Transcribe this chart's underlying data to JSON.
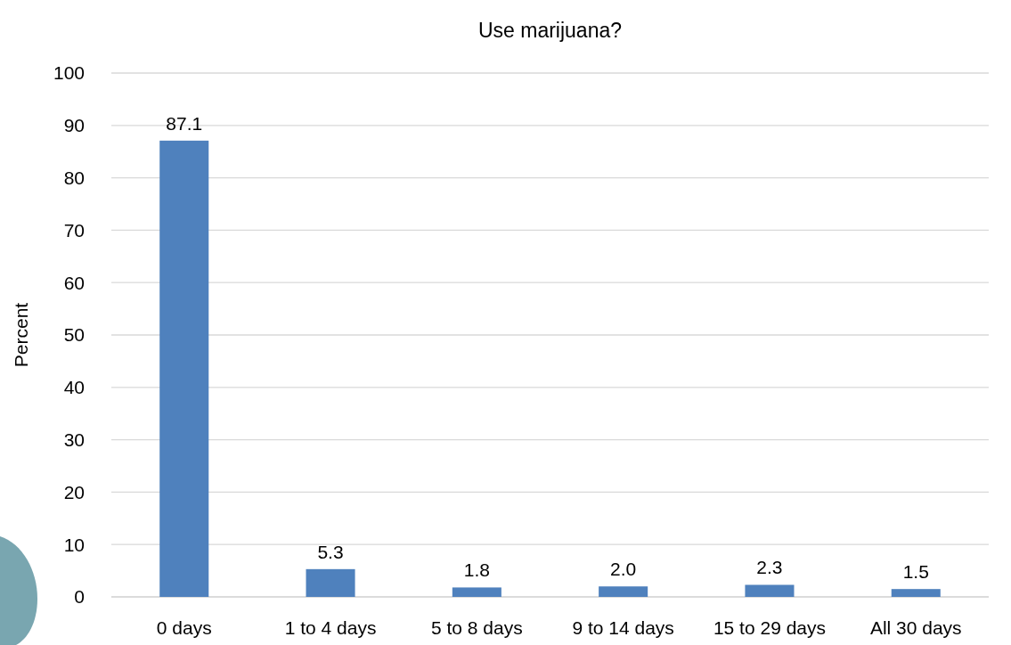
{
  "chart_data": {
    "type": "bar",
    "title": "Use marijuana?",
    "ylabel": "Percent",
    "categories": [
      "0 days",
      "1 to 4 days",
      "5 to 8 days",
      "9 to 14 days",
      "15 to 29 days",
      "All 30 days"
    ],
    "values": [
      87.1,
      5.3,
      1.8,
      2.0,
      2.3,
      1.5
    ],
    "value_labels": [
      "87.1",
      "5.3",
      "1.8",
      "2.0",
      "2.3",
      "1.5"
    ],
    "color": "#4f81bd",
    "ylim": [
      0,
      100
    ],
    "yticks": [
      0,
      10,
      20,
      30,
      40,
      50,
      60,
      70,
      80,
      90,
      100
    ],
    "grid": "y"
  }
}
